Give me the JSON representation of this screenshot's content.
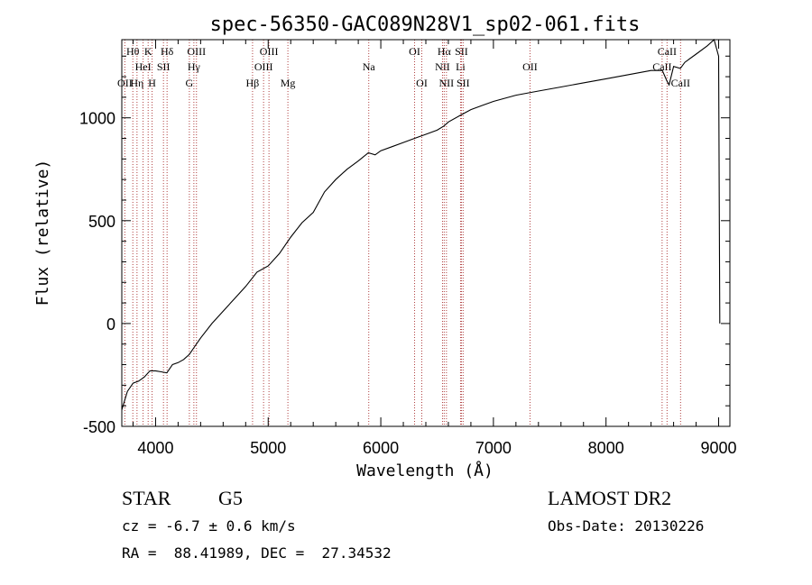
{
  "chart_data": {
    "type": "line",
    "title": "spec-56350-GAC089N28V1_sp02-061.fits",
    "xlabel": "Wavelength (Å)",
    "ylabel": "Flux (relative)",
    "xlim": [
      3700,
      9100
    ],
    "ylim": [
      -500,
      1380
    ],
    "xticks": [
      4000,
      5000,
      6000,
      7000,
      8000,
      9000
    ],
    "yticks": [
      -500,
      0,
      500,
      1000
    ],
    "grid": false,
    "series": [
      {
        "color": "#000000",
        "x": [
          3700,
          3750,
          3800,
          3850,
          3900,
          3950,
          4000,
          4050,
          4100,
          4150,
          4200,
          4250,
          4300,
          4350,
          4400,
          4500,
          4600,
          4700,
          4800,
          4900,
          5000,
          5100,
          5200,
          5300,
          5400,
          5500,
          5600,
          5700,
          5800,
          5890,
          5950,
          6000,
          6100,
          6200,
          6300,
          6400,
          6500,
          6560,
          6600,
          6700,
          6800,
          6900,
          7000,
          7200,
          7400,
          7600,
          7800,
          8000,
          8200,
          8400,
          8500,
          8540,
          8560,
          8600,
          8660,
          8700,
          8800,
          8900,
          8960,
          9000,
          9010
        ],
        "y": [
          -420,
          -330,
          -290,
          -280,
          -260,
          -230,
          -230,
          -235,
          -240,
          -200,
          -190,
          -175,
          -150,
          -110,
          -70,
          0,
          60,
          120,
          180,
          250,
          280,
          340,
          420,
          490,
          540,
          640,
          700,
          750,
          790,
          830,
          820,
          840,
          860,
          880,
          900,
          920,
          940,
          960,
          980,
          1010,
          1040,
          1060,
          1080,
          1110,
          1130,
          1150,
          1170,
          1190,
          1210,
          1230,
          1230,
          1180,
          1160,
          1250,
          1240,
          1270,
          1310,
          1350,
          1380,
          1300,
          0
        ]
      }
    ],
    "spectral_lines": [
      {
        "label": "OII",
        "row": 3,
        "x": 3727
      },
      {
        "label": "Hθ",
        "row": 1,
        "x": 3798
      },
      {
        "label": "Hη",
        "row": 3,
        "x": 3835
      },
      {
        "label": "HeI",
        "row": 2,
        "x": 3889
      },
      {
        "label": "K",
        "row": 1,
        "x": 3934
      },
      {
        "label": "H",
        "row": 3,
        "x": 3969
      },
      {
        "label": "SII",
        "row": 2,
        "x": 4070
      },
      {
        "label": "Hδ",
        "row": 1,
        "x": 4102
      },
      {
        "label": "G",
        "row": 3,
        "x": 4300
      },
      {
        "label": "Hγ",
        "row": 2,
        "x": 4340
      },
      {
        "label": "OIII",
        "row": 1,
        "x": 4363
      },
      {
        "label": "Hβ",
        "row": 3,
        "x": 4861
      },
      {
        "label": "OIII",
        "row": 2,
        "x": 4959
      },
      {
        "label": "OIII",
        "row": 1,
        "x": 5007
      },
      {
        "label": "Mg",
        "row": 3,
        "x": 5175
      },
      {
        "label": "Na",
        "row": 2,
        "x": 5893
      },
      {
        "label": "OI",
        "row": 1,
        "x": 6300
      },
      {
        "label": "OI",
        "row": 3,
        "x": 6364
      },
      {
        "label": "NII",
        "row": 2,
        "x": 6548
      },
      {
        "label": "Hα",
        "row": 1,
        "x": 6563
      },
      {
        "label": "NII",
        "row": 3,
        "x": 6583
      },
      {
        "label": "Li",
        "row": 2,
        "x": 6708
      },
      {
        "label": "SII",
        "row": 1,
        "x": 6716
      },
      {
        "label": "SII",
        "row": 3,
        "x": 6731
      },
      {
        "label": "OII",
        "row": 2,
        "x": 7325
      },
      {
        "label": "CaII",
        "row": 2,
        "x": 8498
      },
      {
        "label": "CaII",
        "row": 1,
        "x": 8542
      },
      {
        "label": "CaII",
        "row": 3,
        "x": 8662
      }
    ]
  },
  "info": {
    "object_class": "STAR",
    "subclass": "G5",
    "survey": "LAMOST DR2",
    "redshift": "cz = -6.7 ± 0.6 km/s",
    "obs_date": "Obs-Date: 20130226",
    "coords": "RA =  88.41989, DEC =  27.34532"
  }
}
